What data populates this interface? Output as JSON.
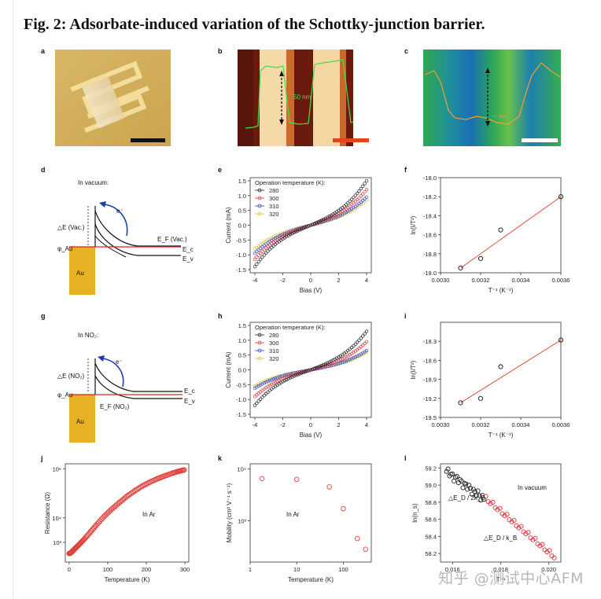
{
  "title": "Fig. 2: Adsorbate-induced variation of the Schottky-junction barrier.",
  "panel_labels": [
    "a",
    "b",
    "c",
    "d",
    "e",
    "f",
    "g",
    "h",
    "i",
    "j",
    "k",
    "l"
  ],
  "panel_b": {
    "annotation": "50 nm"
  },
  "panel_c": {
    "annotation": "~~ mV"
  },
  "panel_d": {
    "condition": "In vacuum:",
    "dE": "△E (Vac.)",
    "electron": "e⁻",
    "Ef": "E_F (Vac.)",
    "phi": "φ_Au",
    "Ec": "E_c",
    "Ev": "E_v",
    "metal": "Au"
  },
  "panel_g": {
    "condition": "In NO₂:",
    "dE": "△E (NO₂)",
    "electron": "e⁻",
    "Ef": "E_F (NO₂)",
    "phi": "φ_Au",
    "Ec": "E_c",
    "Ev": "E_v",
    "metal": "Au"
  },
  "chart_data": [
    {
      "panel": "e",
      "type": "scatter",
      "xlabel": "Bias (V)",
      "ylabel": "Current (mA)",
      "xlim": [
        -4,
        4
      ],
      "ylim": [
        -1.5,
        1.5
      ],
      "xticks": [
        -4,
        -2,
        0,
        2,
        4
      ],
      "yticks": [
        -1.5,
        -1.0,
        -0.5,
        0.0,
        0.5,
        1.0,
        1.5
      ],
      "legend_title": "Operation temperature (K):",
      "legend_position": "top-left",
      "series": [
        {
          "name": "280",
          "color": "#222222",
          "endpoints": [
            -1.4,
            1.5
          ]
        },
        {
          "name": "300",
          "color": "#d9363e",
          "endpoints": [
            -1.15,
            1.2
          ]
        },
        {
          "name": "310",
          "color": "#3a4ec7",
          "endpoints": [
            -0.95,
            0.95
          ]
        },
        {
          "name": "320",
          "color": "#d8c14a",
          "endpoints": [
            -0.8,
            0.85
          ]
        }
      ]
    },
    {
      "panel": "f",
      "type": "scatter",
      "xlabel": "T⁻¹ (K⁻¹)",
      "ylabel": "ln(I/T²)",
      "xlim": [
        0.003,
        0.0036
      ],
      "ylim": [
        -19.0,
        -18.0
      ],
      "xticks": [
        0.003,
        0.0032,
        0.0034,
        0.0036
      ],
      "yticks": [
        -19.0,
        -18.8,
        -18.6,
        -18.4,
        -18.2,
        -18.0
      ],
      "x": [
        0.0031,
        0.0032,
        0.0033,
        0.0036
      ],
      "y": [
        -18.95,
        -18.85,
        -18.55,
        -18.2
      ],
      "fit": {
        "x": [
          0.0031,
          0.0036
        ],
        "y": [
          -18.95,
          -18.2
        ],
        "color": "#e03a2f"
      }
    },
    {
      "panel": "h",
      "type": "scatter",
      "xlabel": "Bias (V)",
      "ylabel": "Current (mA)",
      "xlim": [
        -4,
        4
      ],
      "ylim": [
        -1.5,
        1.5
      ],
      "xticks": [
        -4,
        -2,
        0,
        2,
        4
      ],
      "yticks": [
        -1.5,
        -1.0,
        -0.5,
        0.0,
        0.5,
        1.0,
        1.5
      ],
      "legend_title": "Operation temperature (K):",
      "legend_position": "top-left",
      "series": [
        {
          "name": "280",
          "color": "#222222",
          "endpoints": [
            -1.2,
            1.3
          ]
        },
        {
          "name": "300",
          "color": "#d9363e",
          "endpoints": [
            -0.9,
            0.95
          ]
        },
        {
          "name": "310",
          "color": "#3a4ec7",
          "endpoints": [
            -0.62,
            0.65
          ]
        },
        {
          "name": "320",
          "color": "#d8c14a",
          "endpoints": [
            -0.55,
            0.6
          ]
        }
      ]
    },
    {
      "panel": "i",
      "type": "scatter",
      "xlabel": "T⁻¹ (K⁻¹)",
      "ylabel": "ln(I/T²)",
      "xlim": [
        0.003,
        0.0036
      ],
      "ylim": [
        -19.5,
        -18.0
      ],
      "xticks": [
        0.003,
        0.0032,
        0.0034,
        0.0036
      ],
      "yticks": [
        -19.5,
        -19.2,
        -18.9,
        -18.6,
        -18.3
      ],
      "x": [
        0.0031,
        0.0032,
        0.0033,
        0.0036
      ],
      "y": [
        -19.27,
        -19.2,
        -18.7,
        -18.28
      ],
      "fit": {
        "x": [
          0.0031,
          0.0036
        ],
        "y": [
          -19.27,
          -18.28
        ],
        "color": "#e03a2f"
      }
    },
    {
      "panel": "j",
      "type": "scatter",
      "xlabel": "Temperature (K)",
      "ylabel": "Resistance (Ω)",
      "annotation": "In Ar",
      "xlim": [
        -10,
        310
      ],
      "ylog": true,
      "ylim_log10": [
        2.2,
        6.2
      ],
      "xticks": [
        0,
        100,
        200,
        300
      ],
      "yticks": [
        {
          "label": "10⁶",
          "log": 6
        },
        {
          "label": "10⁴",
          "log": 4
        },
        {
          "label": "10³",
          "log": 3
        }
      ],
      "curve_points": [
        [
          0,
          2.55
        ],
        [
          5,
          2.58
        ],
        [
          12,
          2.7
        ],
        [
          20,
          2.82
        ],
        [
          30,
          2.98
        ],
        [
          40,
          3.15
        ],
        [
          55,
          3.42
        ],
        [
          70,
          3.7
        ],
        [
          90,
          4.05
        ],
        [
          110,
          4.35
        ],
        [
          130,
          4.62
        ],
        [
          150,
          4.88
        ],
        [
          170,
          5.1
        ],
        [
          190,
          5.3
        ],
        [
          210,
          5.46
        ],
        [
          230,
          5.6
        ],
        [
          250,
          5.72
        ],
        [
          270,
          5.83
        ],
        [
          285,
          5.9
        ],
        [
          298,
          5.95
        ]
      ],
      "color": "#e0443f"
    },
    {
      "panel": "k",
      "type": "scatter",
      "xlabel": "Temperature (K)",
      "ylabel": "Mobility (cm² V⁻¹ s⁻¹)",
      "annotation": "In Ar",
      "xlog": true,
      "xlim_log10": [
        0,
        2.6
      ],
      "ylog": true,
      "ylim_log10": [
        2.2,
        4.1
      ],
      "xticks": [
        {
          "label": "1",
          "log": 0
        },
        {
          "label": "10",
          "log": 1
        },
        {
          "label": "100",
          "log": 2
        }
      ],
      "yticks": [
        {
          "label": "10⁴",
          "log": 4
        },
        {
          "label": "10³",
          "log": 3
        }
      ],
      "x": [
        1.8,
        10,
        50,
        100,
        200,
        300
      ],
      "y": [
        6500,
        6300,
        4500,
        1700,
        450,
        280
      ],
      "color": "#e0443f"
    },
    {
      "panel": "l",
      "type": "scatter",
      "xlabel": "T⁻¹",
      "ylabel": "ln(n_s)",
      "xlim": [
        0.0155,
        0.0205
      ],
      "ylim": [
        58.1,
        59.25
      ],
      "xticks": [
        {
          "label": "0.016",
          "v": 0.016
        },
        {
          "label": "0.018",
          "v": 0.018
        },
        {
          "label": "0.020",
          "v": 0.02
        }
      ],
      "yticks": [
        58.2,
        58.4,
        58.6,
        58.8,
        59.0,
        59.2
      ],
      "annotation_top": "In vacuum",
      "annotation_black": "△E_D / 2k_B",
      "annotation_red": "△E_D / k_B",
      "black_series": {
        "color": "#222222"
      },
      "red_series": {
        "color": "#d9363e"
      }
    }
  ],
  "watermark": "知乎 @测试中心AFM"
}
